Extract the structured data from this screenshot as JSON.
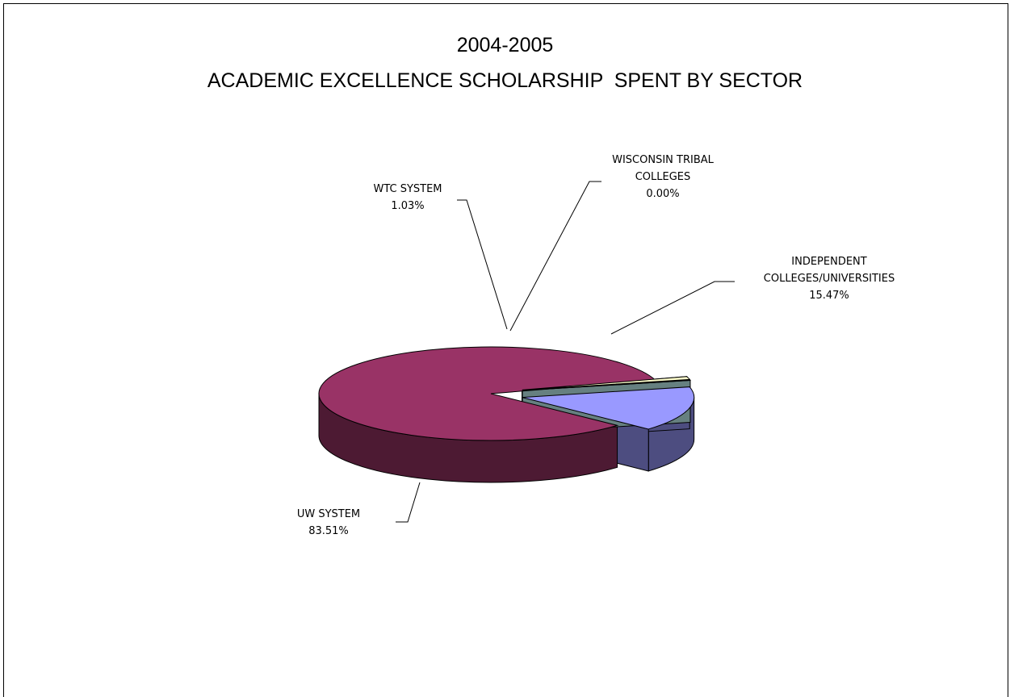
{
  "chart_data": {
    "type": "pie",
    "title": "2004-2005",
    "subtitle": "ACADEMIC EXCELLENCE SCHOLARSHIP  SPENT BY SECTOR",
    "slices": [
      {
        "label": [
          "INDEPENDENT",
          "COLLEGES/UNIVERSITIES"
        ],
        "pct": "15.47%",
        "value": 15.47,
        "color": "#9999ff",
        "dark": "#4d4d80",
        "explode": 1
      },
      {
        "label": [
          "UW SYSTEM"
        ],
        "pct": "83.51%",
        "value": 83.51,
        "color": "#993366",
        "dark": "#4d1a33",
        "explode": 0
      },
      {
        "label": [
          "WTC SYSTEM"
        ],
        "pct": "1.03%",
        "value": 1.03,
        "color": "#ffffcc",
        "dark": "#808066",
        "explode": 1
      },
      {
        "label": [
          "WISCONSIN TRIBAL",
          "COLLEGES"
        ],
        "pct": "0.00%",
        "value": 0.0,
        "color": "#ccffff",
        "dark": "#668080",
        "explode": 1
      }
    ],
    "grid": false,
    "legend": "none"
  }
}
